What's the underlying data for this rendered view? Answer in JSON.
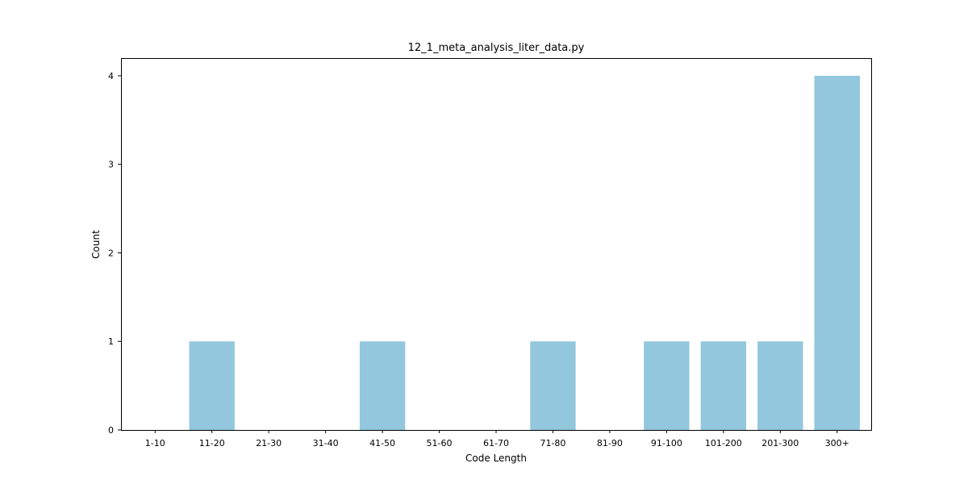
{
  "chart_data": {
    "type": "bar",
    "title": "12_1_meta_analysis_liter_data.py",
    "xlabel": "Code Length",
    "ylabel": "Count",
    "categories": [
      "1-10",
      "11-20",
      "21-30",
      "31-40",
      "41-50",
      "51-60",
      "61-70",
      "71-80",
      "81-90",
      "91-100",
      "101-200",
      "201-300",
      "300+"
    ],
    "values": [
      0,
      1,
      0,
      0,
      1,
      0,
      0,
      1,
      0,
      1,
      1,
      1,
      4
    ],
    "ylim": [
      0,
      4.2
    ],
    "yticks": [
      0,
      1,
      2,
      3,
      4
    ],
    "grid": false,
    "bar_color": "#92c7dd"
  }
}
